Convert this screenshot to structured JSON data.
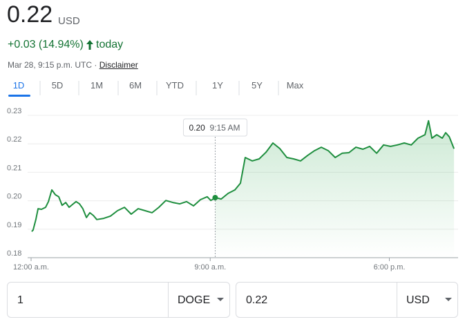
{
  "price": "0.22",
  "currency": "USD",
  "change": "+0.03 (14.94%)",
  "change_period": "today",
  "timestamp": "Mar 28, 9:15 p.m. UTC",
  "separator": "·",
  "disclaimer": "Disclaimer",
  "ranges": [
    "1D",
    "5D",
    "1M",
    "6M",
    "YTD",
    "1Y",
    "5Y",
    "Max"
  ],
  "selected_range": "1D",
  "chart_data": {
    "type": "line",
    "color": "#1e8e3e",
    "grid": true,
    "x": [
      0.03,
      0.1,
      0.24,
      0.35,
      0.52,
      0.73,
      0.87,
      1.04,
      1.22,
      1.39,
      1.56,
      1.74,
      1.91,
      2.08,
      2.26,
      2.43,
      2.6,
      2.78,
      2.95,
      3.13,
      3.3,
      3.65,
      3.99,
      4.34,
      4.69,
      5.03,
      5.38,
      5.73,
      6.08,
      6.42,
      6.77,
      7.12,
      7.47,
      7.81,
      8.16,
      8.51,
      8.85,
      9.03,
      9.27,
      9.55,
      9.9,
      10.24,
      10.52,
      10.76,
      11.11,
      11.46,
      11.81,
      12.15,
      12.5,
      12.85,
      13.19,
      13.54,
      13.89,
      14.24,
      14.58,
      14.93,
      15.28,
      15.63,
      15.97,
      16.32,
      16.67,
      17.01,
      17.36,
      17.71,
      18.06,
      18.4,
      18.75,
      19.1,
      19.44,
      19.79,
      19.97,
      20.14,
      20.38,
      20.66,
      20.83,
      21.01,
      21.25
    ],
    "values": [
      0.1892,
      0.1897,
      0.1934,
      0.1972,
      0.197,
      0.1977,
      0.1997,
      0.2038,
      0.2021,
      0.2014,
      0.1984,
      0.1994,
      0.1977,
      0.1987,
      0.1997,
      0.1989,
      0.1972,
      0.1941,
      0.1958,
      0.1948,
      0.1934,
      0.1938,
      0.1946,
      0.1965,
      0.1977,
      0.1953,
      0.1972,
      0.1965,
      0.1958,
      0.1977,
      0.2001,
      0.1994,
      0.1989,
      0.1997,
      0.1982,
      0.2004,
      0.2014,
      0.2001,
      0.2011,
      0.2006,
      0.2026,
      0.2038,
      0.2062,
      0.2152,
      0.214,
      0.2147,
      0.2171,
      0.2203,
      0.2183,
      0.2152,
      0.2147,
      0.214,
      0.2159,
      0.2176,
      0.2188,
      0.2176,
      0.2152,
      0.2167,
      0.2169,
      0.2188,
      0.2181,
      0.2191,
      0.2167,
      0.2196,
      0.2191,
      0.2196,
      0.2203,
      0.2196,
      0.222,
      0.2232,
      0.2281,
      0.222,
      0.2232,
      0.222,
      0.2239,
      0.2225,
      0.2183
    ],
    "xlim": [
      0,
      21.35
    ],
    "xticks": [
      {
        "value": 0,
        "label": "12:00 a.m."
      },
      {
        "value": 9,
        "label": "9:00 a.m."
      },
      {
        "value": 18,
        "label": "6:00 p.m."
      }
    ],
    "ylim": [
      0.18,
      0.23
    ],
    "yticks": [
      0.18,
      0.19,
      {
        "value": 0.2,
        "label": "0.20"
      },
      0.21,
      0.22,
      0.23
    ],
    "tooltip": {
      "x": 9.25,
      "value": 0.2011,
      "value_label": "0.20",
      "label": "9:15 AM"
    }
  },
  "converter": {
    "from_amount": "1",
    "from_currency": "DOGE",
    "to_amount": "0.22",
    "to_currency": "USD"
  }
}
